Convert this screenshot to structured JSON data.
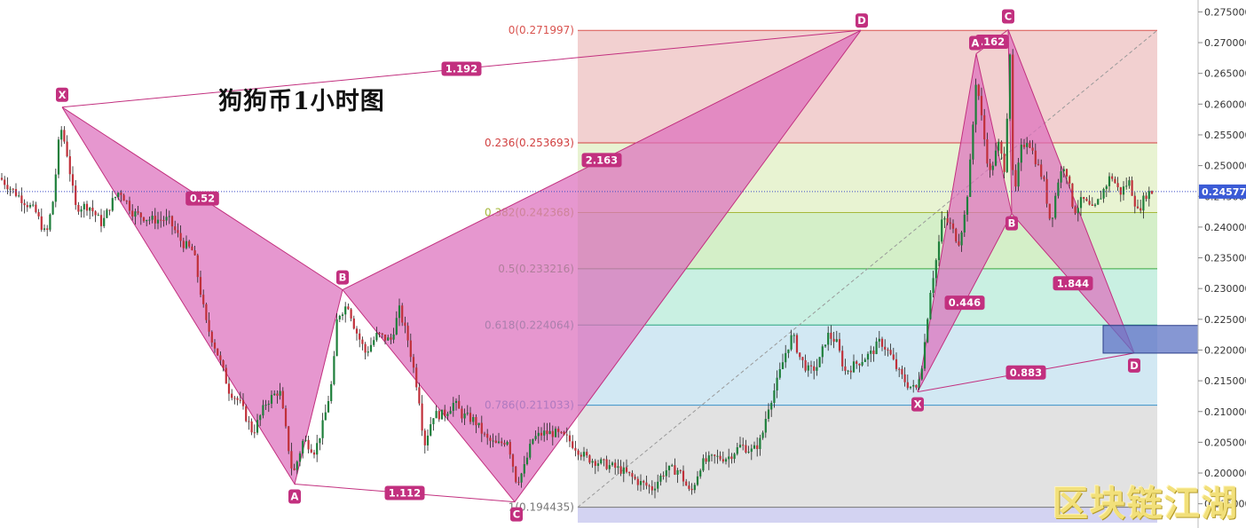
{
  "title": "狗狗币1小时图",
  "watermark": "区块链江湖",
  "colors": {
    "pattern_fill": "#dd6fbd",
    "pattern_stroke": "#c2307f",
    "label_bg": "#c2307f",
    "candle_up": "#1e7f3b",
    "candle_down": "#c0303a",
    "price_line": "#3b4bc8",
    "price_tag": "#3b5bd6",
    "prz_box": "#5d74c4"
  },
  "chart_data": {
    "type": "candlestick",
    "title": "狗狗币1小时图",
    "ylim": [
      0.1925,
      0.2765
    ],
    "y_ticks": [
      0.275,
      0.27,
      0.265,
      0.26,
      0.255,
      0.25,
      0.245,
      0.24,
      0.235,
      0.23,
      0.225,
      0.22,
      0.215,
      0.21,
      0.205,
      0.2,
      0.195
    ],
    "y_tick_labels": [
      "0.275000",
      "0.270000",
      "0.265000",
      "0.260000",
      "0.255000",
      "0.250000",
      "0.245000",
      "0.240000",
      "0.235000",
      "0.230000",
      "0.225000",
      "0.220000",
      "0.215000",
      "0.210000",
      "0.205000",
      "0.200000",
      "0.195000"
    ],
    "last_price": 0.245772,
    "last_price_label": "0.245772",
    "price_anchors": [
      [
        0,
        0.248
      ],
      [
        20,
        0.2452
      ],
      [
        40,
        0.2425
      ],
      [
        52,
        0.2385
      ],
      [
        60,
        0.2445
      ],
      [
        68,
        0.2565
      ],
      [
        75,
        0.2525
      ],
      [
        85,
        0.2432
      ],
      [
        100,
        0.2435
      ],
      [
        115,
        0.2405
      ],
      [
        125,
        0.2438
      ],
      [
        135,
        0.246
      ],
      [
        150,
        0.2423
      ],
      [
        170,
        0.2412
      ],
      [
        190,
        0.2412
      ],
      [
        205,
        0.2375
      ],
      [
        218,
        0.236
      ],
      [
        232,
        0.2245
      ],
      [
        245,
        0.2195
      ],
      [
        258,
        0.2135
      ],
      [
        270,
        0.2115
      ],
      [
        285,
        0.2065
      ],
      [
        300,
        0.2115
      ],
      [
        315,
        0.2135
      ],
      [
        330,
        0.1995
      ],
      [
        342,
        0.2055
      ],
      [
        355,
        0.2035
      ],
      [
        365,
        0.2085
      ],
      [
        375,
        0.2155
      ],
      [
        380,
        0.2255
      ],
      [
        392,
        0.2275
      ],
      [
        400,
        0.2235
      ],
      [
        412,
        0.2195
      ],
      [
        425,
        0.2225
      ],
      [
        440,
        0.2215
      ],
      [
        450,
        0.2265
      ],
      [
        460,
        0.2215
      ],
      [
        472,
        0.2125
      ],
      [
        478,
        0.2045
      ],
      [
        488,
        0.2095
      ],
      [
        500,
        0.2095
      ],
      [
        512,
        0.2115
      ],
      [
        520,
        0.2095
      ],
      [
        535,
        0.2085
      ],
      [
        548,
        0.2055
      ],
      [
        560,
        0.2045
      ],
      [
        572,
        0.2055
      ],
      [
        582,
        0.1985
      ],
      [
        590,
        0.2005
      ],
      [
        600,
        0.2055
      ],
      [
        612,
        0.2065
      ],
      [
        625,
        0.2065
      ],
      [
        640,
        0.2055
      ],
      [
        660,
        0.2025
      ],
      [
        680,
        0.2015
      ],
      [
        700,
        0.2005
      ],
      [
        720,
        0.1985
      ],
      [
        735,
        0.1975
      ],
      [
        750,
        0.2005
      ],
      [
        765,
        0.2005
      ],
      [
        778,
        0.1965
      ],
      [
        790,
        0.2015
      ],
      [
        805,
        0.2025
      ],
      [
        820,
        0.2025
      ],
      [
        835,
        0.2045
      ],
      [
        848,
        0.2035
      ],
      [
        858,
        0.2055
      ],
      [
        865,
        0.2105
      ],
      [
        875,
        0.2145
      ],
      [
        885,
        0.2195
      ],
      [
        893,
        0.2225
      ],
      [
        902,
        0.2185
      ],
      [
        912,
        0.2165
      ],
      [
        922,
        0.2175
      ],
      [
        932,
        0.2225
      ],
      [
        942,
        0.2215
      ],
      [
        952,
        0.2165
      ],
      [
        962,
        0.2175
      ],
      [
        972,
        0.2185
      ],
      [
        982,
        0.2195
      ],
      [
        992,
        0.2215
      ],
      [
        1002,
        0.2195
      ],
      [
        1012,
        0.2165
      ],
      [
        1022,
        0.2145
      ],
      [
        1032,
        0.2135
      ],
      [
        1040,
        0.2185
      ],
      [
        1048,
        0.2295
      ],
      [
        1056,
        0.2355
      ],
      [
        1062,
        0.2415
      ],
      [
        1070,
        0.2405
      ],
      [
        1080,
        0.2375
      ],
      [
        1088,
        0.2425
      ],
      [
        1094,
        0.2515
      ],
      [
        1100,
        0.2645
      ],
      [
        1108,
        0.2555
      ],
      [
        1115,
        0.2485
      ],
      [
        1125,
        0.2535
      ],
      [
        1132,
        0.2495
      ],
      [
        1138,
        0.2685
      ],
      [
        1142,
        0.2435
      ],
      [
        1150,
        0.2525
      ],
      [
        1158,
        0.2545
      ],
      [
        1168,
        0.2505
      ],
      [
        1176,
        0.2475
      ],
      [
        1184,
        0.2405
      ],
      [
        1192,
        0.2475
      ],
      [
        1200,
        0.2505
      ],
      [
        1210,
        0.2425
      ],
      [
        1220,
        0.2445
      ],
      [
        1232,
        0.2425
      ],
      [
        1245,
        0.2465
      ],
      [
        1252,
        0.2485
      ],
      [
        1262,
        0.2455
      ],
      [
        1272,
        0.2475
      ],
      [
        1282,
        0.2425
      ],
      [
        1292,
        0.2455
      ],
      [
        1300,
        0.2458
      ]
    ],
    "fibonacci": [
      {
        "ratio": "0",
        "value": 0.271997,
        "label": "0(0.271997)",
        "color": "#d9534f"
      },
      {
        "ratio": "0.236",
        "value": 0.253693,
        "label": "0.236(0.253693)",
        "color": "#d14040"
      },
      {
        "ratio": "0.382",
        "value": 0.242368,
        "label": "0.382(0.242368)",
        "color": "#a5b83a"
      },
      {
        "ratio": "0.5",
        "value": 0.233216,
        "label": "0.5(0.233216)",
        "color": "#3aa845"
      },
      {
        "ratio": "0.618",
        "value": 0.224064,
        "label": "0.618(0.224064)",
        "color": "#2aa680"
      },
      {
        "ratio": "0.786",
        "value": 0.211033,
        "label": "0.786(0.211033)",
        "color": "#3a92c8"
      },
      {
        "ratio": "1",
        "value": 0.194435,
        "label": "1(0.194435)",
        "color": "#777777"
      }
    ],
    "pattern_1": {
      "points": {
        "X": [
          70,
          0.2595
        ],
        "A": [
          332,
          0.1982
        ],
        "B": [
          386,
          0.2298
        ],
        "C": [
          580,
          0.1953
        ],
        "D": [
          970,
          0.272
        ]
      },
      "ratios": [
        {
          "text": "1.192",
          "between": [
            "X",
            "D"
          ]
        },
        {
          "text": "0.52",
          "between": [
            "X",
            "B"
          ]
        },
        {
          "text": "1.112",
          "between": [
            "A",
            "C"
          ]
        },
        {
          "text": "2.163",
          "between": [
            "B",
            "D"
          ]
        }
      ]
    },
    "pattern_2": {
      "points": {
        "X": [
          1034,
          0.2132
        ],
        "A": [
          1100,
          0.2682
        ],
        "B": [
          1140,
          0.2422
        ],
        "C": [
          1136,
          0.2721
        ],
        "D": [
          1278,
          0.2195
        ]
      },
      "ratios": [
        {
          "text": ".162",
          "between": [
            "A",
            "C"
          ]
        },
        {
          "text": "0.446",
          "between": [
            "X",
            "B"
          ]
        },
        {
          "text": "1.844",
          "between": [
            "B",
            "D"
          ]
        },
        {
          "text": "0.883",
          "between": [
            "X",
            "D"
          ]
        }
      ]
    },
    "prz_box": {
      "y_top": 0.224,
      "y_bottom": 0.2195
    }
  }
}
